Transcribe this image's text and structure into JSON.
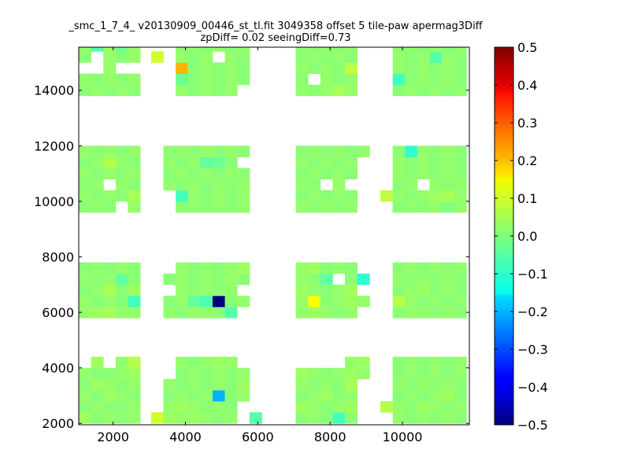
{
  "chart_data": {
    "type": "heatmap",
    "title": "_smc_1_7_4_ v20130909_00446_st_tl.fit 3049358 offset 5 tile-paw apermag3Diff",
    "subtitle": "zpDiff= 0.02 seeingDiff=0.73",
    "xlabel": "",
    "ylabel": "",
    "xlim": [
      1050,
      11850
    ],
    "ylim": [
      1950,
      15550
    ],
    "xticks": [
      2000,
      4000,
      6000,
      8000,
      10000
    ],
    "yticks": [
      2000,
      4000,
      6000,
      8000,
      10000,
      12000,
      14000
    ],
    "colorbar": {
      "range": [
        -0.5,
        0.5
      ],
      "ticks": [
        "0.5",
        "0.4",
        "0.3",
        "0.2",
        "0.1",
        "0.0",
        "−0.1",
        "−0.2",
        "−0.3",
        "−0.4",
        "−0.5"
      ],
      "colormap": "jet"
    },
    "grid": false,
    "cell_size": [
      340,
      400
    ],
    "x_centers": [
      1220,
      1560,
      1900,
      2240,
      2580,
      3220,
      3560,
      3900,
      4240,
      4580,
      4920,
      5260,
      5600,
      5940,
      7220,
      7560,
      7900,
      8240,
      8580,
      8920,
      9560,
      9900,
      10240,
      10580,
      10920,
      11260,
      11600
    ],
    "y_centers": [
      2200,
      2600,
      3000,
      3400,
      3800,
      4200,
      6000,
      6400,
      6800,
      7200,
      7600,
      8000,
      9800,
      10200,
      10600,
      11000,
      11400,
      11800,
      14000,
      14400,
      14800,
      15200,
      15600
    ],
    "grid_values": [
      [
        0.03,
        0.01,
        0.02,
        0.01,
        0.02,
        0.08,
        0.03,
        0.02,
        0.03,
        0.02,
        0.01,
        0.02,
        null,
        -0.04,
        0.01,
        0.02,
        0.01,
        -0.06,
        0.01,
        null,
        null,
        0.02,
        0.01,
        0.02,
        0.01,
        0.02,
        0.01
      ],
      [
        0.01,
        0.02,
        0.01,
        0.01,
        0.02,
        null,
        0.02,
        0.03,
        0.02,
        0.01,
        0.02,
        0.01,
        null,
        null,
        0.03,
        0.02,
        0.01,
        0.02,
        0.03,
        null,
        0.05,
        0.02,
        0.01,
        0.03,
        0.02,
        0.01,
        0.02
      ],
      [
        0.02,
        0.01,
        0.03,
        0.02,
        0.01,
        null,
        0.01,
        0.02,
        0.01,
        0.02,
        -0.2,
        0.01,
        0.02,
        null,
        0.01,
        0.02,
        0.03,
        0.01,
        0.02,
        null,
        null,
        0.01,
        0.02,
        0.01,
        0.02,
        0.03,
        0.01
      ],
      [
        0.01,
        0.03,
        0.02,
        0.01,
        0.02,
        null,
        0.02,
        0.01,
        0.02,
        0.01,
        0.02,
        0.01,
        0.03,
        null,
        0.02,
        0.01,
        0.02,
        0.01,
        0.04,
        null,
        null,
        0.02,
        0.01,
        0.02,
        0.01,
        0.02,
        0.01
      ],
      [
        0.02,
        0.01,
        0.01,
        0.02,
        0.03,
        null,
        null,
        0.01,
        0.02,
        0.01,
        0.02,
        0.01,
        0.02,
        null,
        0.03,
        0.02,
        0.01,
        0.02,
        0.03,
        0.02,
        null,
        0.01,
        0.02,
        0.01,
        0.02,
        0.01,
        0.02
      ],
      [
        null,
        0.03,
        null,
        0.02,
        0.05,
        null,
        null,
        0.02,
        0.01,
        0.02,
        0.03,
        0.02,
        null,
        null,
        null,
        null,
        null,
        null,
        0.02,
        0.03,
        null,
        0.01,
        0.02,
        0.01,
        0.02,
        0.01,
        0.02
      ],
      [
        0.02,
        0.03,
        0.04,
        0.02,
        0.02,
        null,
        0.02,
        0.01,
        0.02,
        0.02,
        0.01,
        -0.04,
        null,
        null,
        0.02,
        0.03,
        0.02,
        0.01,
        0.02,
        null,
        null,
        0.01,
        0.02,
        0.02,
        0.01,
        0.02,
        0.01
      ],
      [
        0.02,
        0.01,
        0.02,
        0.01,
        -0.06,
        null,
        0.01,
        0.02,
        -0.03,
        -0.05,
        -0.5,
        0.01,
        0.02,
        null,
        0.02,
        0.12,
        0.01,
        0.02,
        0.03,
        0.02,
        null,
        0.05,
        0.02,
        0.01,
        0.02,
        0.01,
        0.02
      ],
      [
        0.01,
        0.02,
        0.04,
        0.01,
        0.03,
        null,
        null,
        0.02,
        0.01,
        0.02,
        0.01,
        0.02,
        null,
        null,
        0.03,
        0.02,
        0.01,
        0.02,
        0.04,
        null,
        null,
        0.01,
        0.02,
        0.03,
        0.01,
        0.02,
        0.01
      ],
      [
        0.02,
        0.01,
        0.02,
        -0.03,
        0.01,
        null,
        0.01,
        0.02,
        0.01,
        0.02,
        0.01,
        0.02,
        0.01,
        null,
        0.02,
        0.01,
        -0.03,
        null,
        0.01,
        -0.08,
        null,
        0.02,
        0.01,
        0.02,
        0.01,
        0.02,
        0.01
      ],
      [
        0.01,
        0.02,
        0.01,
        0.02,
        0.01,
        null,
        null,
        0.02,
        0.01,
        0.02,
        0.01,
        0.02,
        0.03,
        null,
        0.02,
        0.03,
        0.01,
        0.02,
        0.01,
        null,
        null,
        0.01,
        0.02,
        0.01,
        0.02,
        0.01,
        0.02
      ],
      [
        null,
        null,
        null,
        null,
        null,
        null,
        null,
        null,
        null,
        null,
        null,
        null,
        null,
        null,
        null,
        null,
        null,
        null,
        null,
        null,
        null,
        null,
        null,
        null,
        null,
        null,
        null
      ],
      [
        0.01,
        0.02,
        0.01,
        null,
        0.02,
        null,
        null,
        0.01,
        0.02,
        0.01,
        0.02,
        0.01,
        0.02,
        null,
        0.02,
        0.01,
        0.02,
        0.01,
        0.02,
        null,
        null,
        0.01,
        0.02,
        0.01,
        0.02,
        0.0,
        0.02
      ],
      [
        0.02,
        0.01,
        0.02,
        0.01,
        0.04,
        null,
        null,
        -0.06,
        0.02,
        0.01,
        0.02,
        0.01,
        0.02,
        null,
        0.01,
        0.02,
        0.01,
        0.02,
        0.01,
        null,
        0.06,
        0.02,
        0.01,
        0.02,
        0.03,
        0.04,
        0.02
      ],
      [
        0.01,
        0.02,
        null,
        0.02,
        0.01,
        null,
        0.02,
        0.01,
        0.02,
        0.01,
        0.02,
        0.01,
        0.02,
        null,
        0.02,
        0.01,
        null,
        0.02,
        null,
        null,
        null,
        0.01,
        0.02,
        null,
        0.02,
        0.01,
        0.02
      ],
      [
        0.02,
        0.01,
        0.02,
        0.01,
        0.02,
        null,
        0.01,
        0.02,
        0.01,
        0.02,
        0.01,
        0.02,
        0.01,
        null,
        0.01,
        0.02,
        0.01,
        0.02,
        0.01,
        null,
        null,
        0.02,
        0.01,
        0.02,
        0.01,
        0.02,
        0.01
      ],
      [
        0.01,
        0.02,
        0.05,
        0.02,
        0.01,
        null,
        0.02,
        0.01,
        0.02,
        -0.03,
        -0.02,
        0.01,
        null,
        null,
        0.02,
        0.01,
        0.02,
        0.01,
        0.02,
        null,
        null,
        0.02,
        0.01,
        0.02,
        0.01,
        0.02,
        0.01
      ],
      [
        0.02,
        0.01,
        0.02,
        0.01,
        0.02,
        null,
        0.01,
        0.02,
        0.01,
        0.02,
        0.01,
        0.02,
        0.01,
        null,
        0.01,
        0.02,
        0.01,
        0.02,
        0.01,
        0.02,
        null,
        0.01,
        -0.08,
        0.02,
        0.01,
        0.02,
        0.01
      ],
      [
        0.01,
        0.02,
        0.01,
        0.02,
        0.01,
        null,
        null,
        0.02,
        0.01,
        0.02,
        0.01,
        0.02,
        null,
        null,
        0.02,
        0.01,
        0.02,
        0.04,
        0.02,
        null,
        null,
        0.01,
        0.02,
        0.01,
        0.02,
        0.01,
        0.02
      ],
      [
        0.02,
        0.01,
        0.02,
        0.01,
        0.02,
        null,
        null,
        -0.02,
        0.01,
        0.02,
        0.01,
        0.02,
        0.01,
        null,
        0.01,
        null,
        0.02,
        0.01,
        0.02,
        null,
        null,
        -0.06,
        0.01,
        0.02,
        0.01,
        0.02,
        0.01
      ],
      [
        null,
        null,
        0.02,
        null,
        null,
        null,
        null,
        0.2,
        0.01,
        0.02,
        0.01,
        0.02,
        0.01,
        null,
        0.02,
        0.01,
        0.02,
        0.01,
        0.06,
        null,
        null,
        0.02,
        0.01,
        0.02,
        0.01,
        0.02,
        0.01
      ],
      [
        0.01,
        null,
        0.02,
        0.01,
        0.02,
        0.08,
        null,
        0.02,
        0.01,
        0.02,
        null,
        0.02,
        0.01,
        null,
        0.01,
        0.02,
        0.01,
        0.02,
        0.01,
        null,
        null,
        0.02,
        0.01,
        0.02,
        -0.04,
        0.02,
        0.01
      ],
      [
        0.02,
        -0.04,
        0.03,
        -0.02,
        0.02,
        null,
        null,
        0.01,
        0.02,
        0.01,
        0.02,
        0.01,
        0.02,
        null,
        0.02,
        0.01,
        0.02,
        0.01,
        0.02,
        null,
        null,
        0.01,
        0.02,
        0.01,
        0.02,
        0.01,
        0.02
      ]
    ]
  }
}
